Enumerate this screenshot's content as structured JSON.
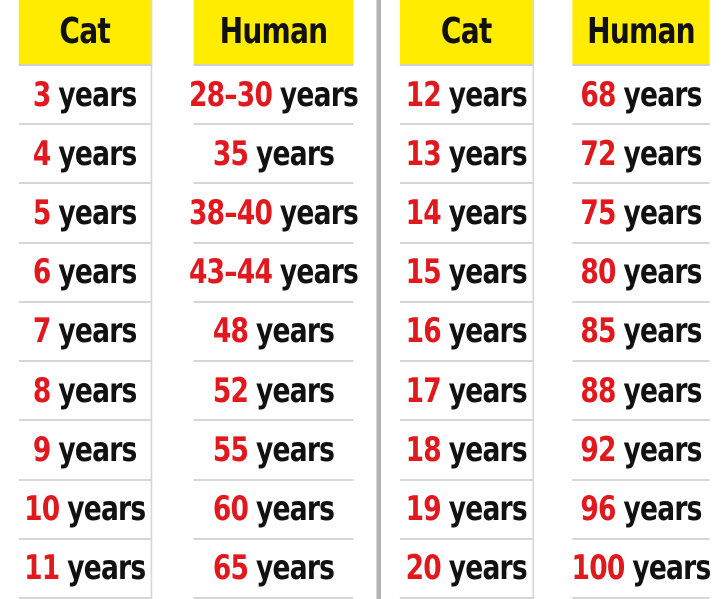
{
  "header": {
    "left_cat": "Cat",
    "left_human": "Human",
    "right_cat": "Cat",
    "right_human": "Human"
  },
  "left_rows": [
    {
      "cat_num": "3",
      "cat_unit": "years",
      "human_num": "28–30",
      "human_unit": "years"
    },
    {
      "cat_num": "4",
      "cat_unit": "years",
      "human_num": "35",
      "human_unit": "years"
    },
    {
      "cat_num": "5",
      "cat_unit": "years",
      "human_num": "38–40",
      "human_unit": "years"
    },
    {
      "cat_num": "6",
      "cat_unit": "years",
      "human_num": "43–44",
      "human_unit": "years"
    },
    {
      "cat_num": "7",
      "cat_unit": "years",
      "human_num": "48",
      "human_unit": "years"
    },
    {
      "cat_num": "8",
      "cat_unit": "years",
      "human_num": "52",
      "human_unit": "years"
    },
    {
      "cat_num": "9",
      "cat_unit": "years",
      "human_num": "55",
      "human_unit": "years"
    },
    {
      "cat_num": "10",
      "cat_unit": "years",
      "human_num": "60",
      "human_unit": "years"
    },
    {
      "cat_num": "11",
      "cat_unit": "years",
      "human_num": "65",
      "human_unit": "years"
    }
  ],
  "right_rows": [
    {
      "cat_num": "12",
      "cat_unit": "years",
      "human_num": "68",
      "human_unit": "years"
    },
    {
      "cat_num": "13",
      "cat_unit": "years",
      "human_num": "72",
      "human_unit": "years"
    },
    {
      "cat_num": "14",
      "cat_unit": "years",
      "human_num": "75",
      "human_unit": "years"
    },
    {
      "cat_num": "15",
      "cat_unit": "years",
      "human_num": "80",
      "human_unit": "years"
    },
    {
      "cat_num": "16",
      "cat_unit": "years",
      "human_num": "85",
      "human_unit": "years"
    },
    {
      "cat_num": "17",
      "cat_unit": "years",
      "human_num": "88",
      "human_unit": "years"
    },
    {
      "cat_num": "18",
      "cat_unit": "years",
      "human_num": "92",
      "human_unit": "years"
    },
    {
      "cat_num": "19",
      "cat_unit": "years",
      "human_num": "96",
      "human_unit": "years"
    },
    {
      "cat_num": "20",
      "cat_unit": "years",
      "human_num": "100",
      "human_unit": "years"
    }
  ],
  "colors": {
    "header_background": "#ffec00",
    "number_red": "#e0191f",
    "text_black": "#111111",
    "grid_gray": "#d6d6d6"
  }
}
